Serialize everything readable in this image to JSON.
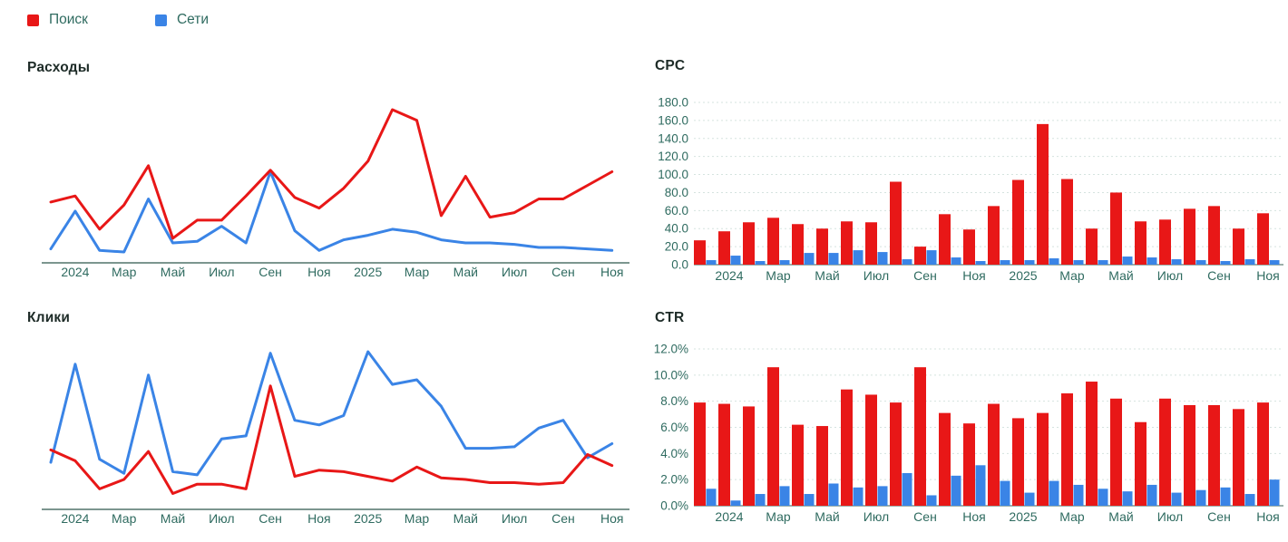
{
  "colors": {
    "search_red": "#e81717",
    "networks_blue": "#3a84e6",
    "axis_text": "#2f6b60",
    "title_text": "#1d2b27",
    "gridline": "#d5e3df",
    "axis_line": "#7c968f",
    "background": "#ffffff"
  },
  "legend": {
    "items": [
      {
        "label": "Поиск",
        "color": "#e81717"
      },
      {
        "label": "Сети",
        "color": "#3a84e6"
      }
    ]
  },
  "chart_data": [
    {
      "id": "expenses",
      "type": "line",
      "title": "Расходы",
      "x_tick_labels": [
        "2024",
        "Мар",
        "Май",
        "Июл",
        "Сен",
        "Ноя",
        "2025",
        "Мар",
        "Май",
        "Июл",
        "Сен",
        "Ноя"
      ],
      "x_tick_indices": [
        1,
        3,
        5,
        7,
        9,
        11,
        13,
        15,
        17,
        19,
        21,
        23
      ],
      "y_axis": "unlabeled",
      "ylim": [
        0,
        110
      ],
      "legend_position": "top-left shared",
      "grid": false,
      "series": [
        {
          "name": "Поиск",
          "color": "#e81717",
          "values": [
            39,
            43,
            21,
            37,
            63,
            15,
            27,
            27,
            43,
            60,
            42,
            35,
            48,
            66,
            100,
            93,
            30,
            56,
            29,
            32,
            41,
            41,
            50,
            59
          ]
        },
        {
          "name": "Сети",
          "color": "#3a84e6",
          "values": [
            8,
            33,
            7,
            6,
            41,
            12,
            13,
            23,
            12,
            59,
            20,
            7,
            14,
            17,
            21,
            19,
            14,
            12,
            12,
            11,
            9,
            9,
            8,
            7
          ]
        }
      ]
    },
    {
      "id": "clicks",
      "type": "line",
      "title": "Клики",
      "x_tick_labels": [
        "2024",
        "Мар",
        "Май",
        "Июл",
        "Сен",
        "Ноя",
        "2025",
        "Мар",
        "Май",
        "Июл",
        "Сен",
        "Ноя"
      ],
      "x_tick_indices": [
        1,
        3,
        5,
        7,
        9,
        11,
        13,
        15,
        17,
        19,
        21,
        23
      ],
      "y_axis": "unlabeled",
      "ylim": [
        0,
        110
      ],
      "grid": false,
      "series": [
        {
          "name": "Поиск",
          "color": "#e81717",
          "values": [
            37,
            30,
            12,
            18,
            36,
            9,
            15,
            15,
            12,
            78,
            20,
            24,
            23,
            20,
            17,
            26,
            19,
            18,
            16,
            16,
            15,
            16,
            34,
            27
          ]
        },
        {
          "name": "Сети",
          "color": "#3a84e6",
          "values": [
            29,
            92,
            31,
            22,
            85,
            23,
            21,
            44,
            46,
            99,
            56,
            53,
            59,
            100,
            79,
            82,
            65,
            38,
            38,
            39,
            51,
            56,
            32,
            41
          ]
        }
      ]
    },
    {
      "id": "cpc",
      "type": "bar",
      "title": "CPC",
      "x_tick_labels": [
        "2024",
        "Мар",
        "Май",
        "Июл",
        "Сен",
        "Ноя",
        "2025",
        "Мар",
        "Май",
        "Июл",
        "Сен",
        "Ноя"
      ],
      "x_tick_indices": [
        1,
        3,
        5,
        7,
        9,
        11,
        13,
        15,
        17,
        19,
        21,
        23
      ],
      "y_tick_labels": [
        "0.0",
        "20.0",
        "40.0",
        "60.0",
        "80.0",
        "100.0",
        "120.0",
        "140.0",
        "160.0",
        "180.0"
      ],
      "ymax": 180,
      "grid": "dotted horizontal",
      "series": [
        {
          "name": "Поиск",
          "color": "#e81717",
          "values": [
            27,
            37,
            47,
            52,
            45,
            40,
            48,
            47,
            92,
            20,
            56,
            39,
            65,
            94,
            156,
            95,
            40,
            80,
            48,
            50,
            62,
            65,
            40,
            57
          ]
        },
        {
          "name": "Сети",
          "color": "#3a84e6",
          "values": [
            5,
            10,
            4,
            5,
            13,
            13,
            16,
            14,
            6,
            16,
            8,
            4,
            5,
            5,
            7,
            5,
            5,
            9,
            8,
            6,
            5,
            4,
            6,
            5
          ]
        }
      ]
    },
    {
      "id": "ctr",
      "type": "bar",
      "title": "CTR",
      "x_tick_labels": [
        "2024",
        "Мар",
        "Май",
        "Июл",
        "Сен",
        "Ноя",
        "2025",
        "Мар",
        "Май",
        "Июл",
        "Сен",
        "Ноя"
      ],
      "x_tick_indices": [
        1,
        3,
        5,
        7,
        9,
        11,
        13,
        15,
        17,
        19,
        21,
        23
      ],
      "y_tick_labels": [
        "0.0%",
        "2.0%",
        "4.0%",
        "6.0%",
        "8.0%",
        "10.0%",
        "12.0%"
      ],
      "ymax": 12,
      "grid": "dotted horizontal",
      "series": [
        {
          "name": "Поиск",
          "color": "#e81717",
          "values": [
            7.9,
            7.8,
            7.6,
            10.6,
            6.2,
            6.1,
            8.9,
            8.5,
            7.9,
            10.6,
            7.1,
            6.3,
            7.8,
            6.7,
            7.1,
            8.6,
            9.5,
            8.2,
            6.4,
            8.2,
            7.7,
            7.7,
            7.4,
            7.9
          ]
        },
        {
          "name": "Сети",
          "color": "#3a84e6",
          "values": [
            1.3,
            0.4,
            0.9,
            1.5,
            0.9,
            1.7,
            1.4,
            1.5,
            2.5,
            0.8,
            2.3,
            3.1,
            1.9,
            1.0,
            1.9,
            1.6,
            1.3,
            1.1,
            1.6,
            1.0,
            1.2,
            1.4,
            0.9,
            2.0
          ]
        }
      ]
    }
  ]
}
